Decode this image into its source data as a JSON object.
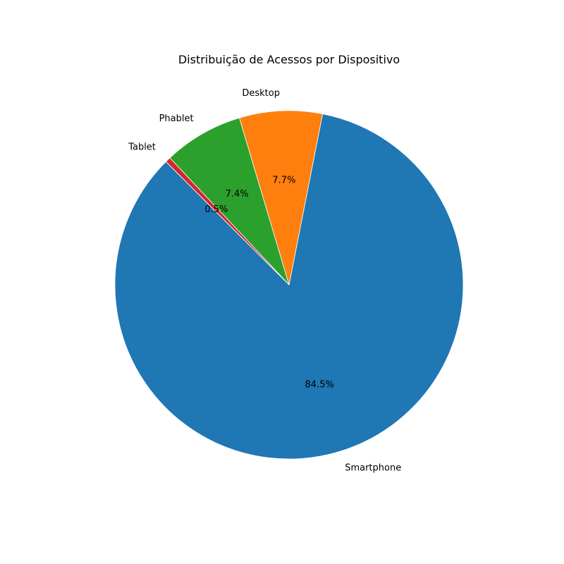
{
  "chart_data": {
    "type": "pie",
    "title": "Distribuição de Acessos por Dispositivo",
    "slices": [
      {
        "label": "Smartphone",
        "value": 84.5,
        "pct_label": "84.5%",
        "color": "#1f77b4"
      },
      {
        "label": "Desktop",
        "value": 7.7,
        "pct_label": "7.7%",
        "color": "#ff7f0e"
      },
      {
        "label": "Phablet",
        "value": 7.4,
        "pct_label": "7.4%",
        "color": "#2ca02c"
      },
      {
        "label": "Tablet",
        "value": 0.5,
        "pct_label": "0.5%",
        "color": "#d62728"
      }
    ]
  }
}
